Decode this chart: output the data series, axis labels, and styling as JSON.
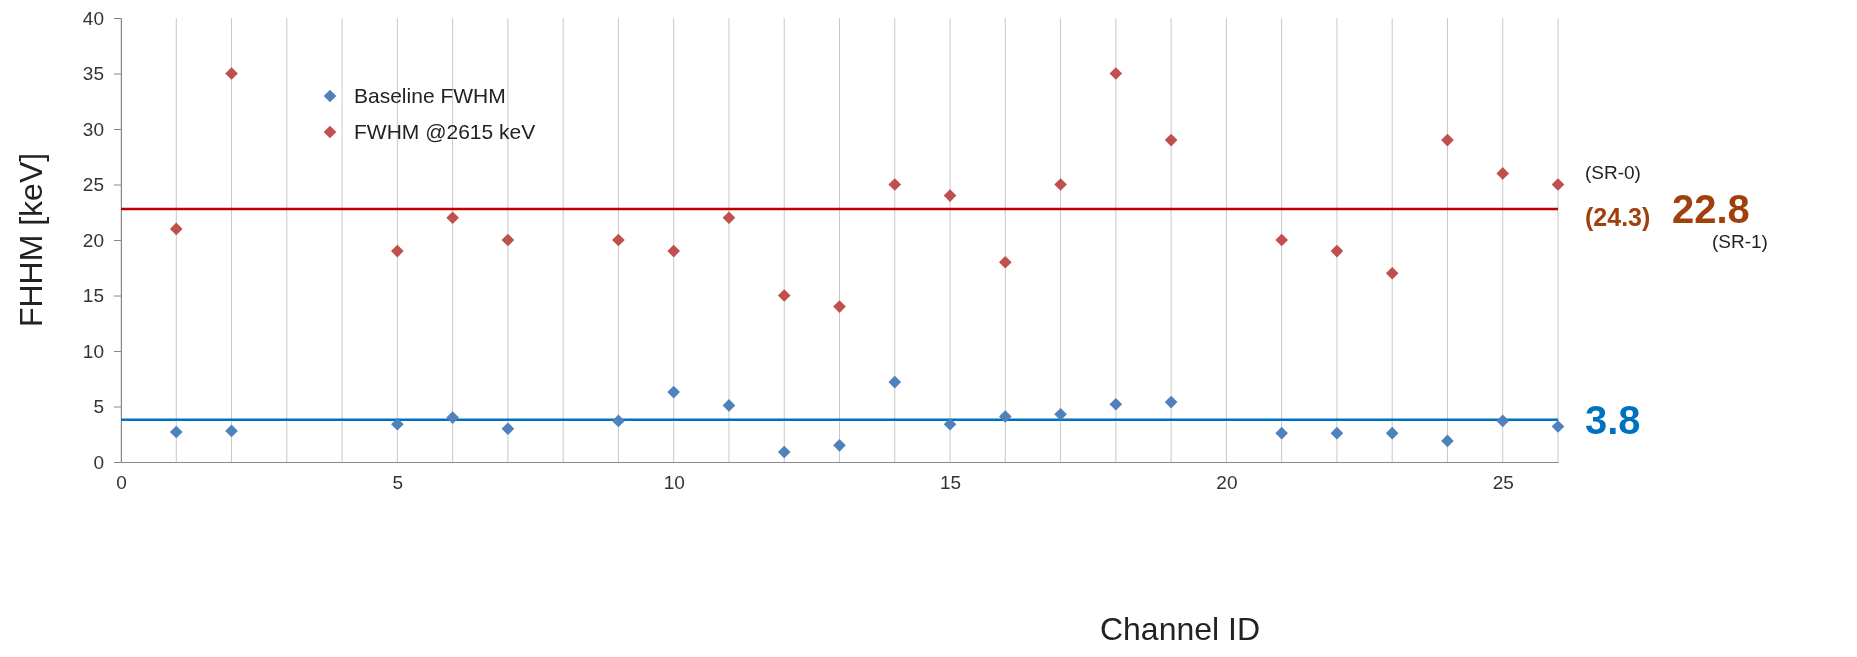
{
  "chart_data": {
    "type": "scatter",
    "xlabel": "Channel ID",
    "ylabel": "FHHM  [keV]",
    "marker": "diamond",
    "legend": "top left",
    "grid": "x",
    "xlim": [
      0,
      26
    ],
    "ylim": [
      0,
      40
    ],
    "xticks": [
      0,
      {
        "value": 1,
        "label": null
      },
      {
        "value": 2,
        "label": null
      },
      {
        "value": 3,
        "label": null
      },
      {
        "value": 4,
        "label": null
      },
      5,
      {
        "value": 6,
        "label": null
      },
      {
        "value": 7,
        "label": null
      },
      {
        "value": 8,
        "label": null
      },
      {
        "value": 9,
        "label": null
      },
      10,
      {
        "value": 11,
        "label": null
      },
      {
        "value": 12,
        "label": null
      },
      {
        "value": 13,
        "label": null
      },
      {
        "value": 14,
        "label": null
      },
      15,
      {
        "value": 16,
        "label": null
      },
      {
        "value": 17,
        "label": null
      },
      {
        "value": 18,
        "label": null
      },
      {
        "value": 19,
        "label": null
      },
      20,
      {
        "value": 21,
        "label": null
      },
      {
        "value": 22,
        "label": null
      },
      {
        "value": 23,
        "label": null
      },
      {
        "value": 24,
        "label": null
      },
      25,
      {
        "value": 26,
        "label": null
      }
    ],
    "yticks": [
      0,
      5,
      10,
      15,
      20,
      25,
      30,
      35,
      40
    ],
    "x": [
      1,
      2,
      5,
      6,
      7,
      9,
      10,
      11,
      12,
      13,
      14,
      15,
      16,
      17,
      18,
      19,
      21,
      22,
      23,
      24,
      25,
      26
    ],
    "series": [
      {
        "name": "Baseline FWHM",
        "color": "#4f81bd",
        "values": [
          2.7,
          2.8,
          3.4,
          4.0,
          3.0,
          3.7,
          6.3,
          5.1,
          0.9,
          1.5,
          7.2,
          3.4,
          4.1,
          4.3,
          5.2,
          5.4,
          2.6,
          2.6,
          2.6,
          1.9,
          3.7,
          3.2
        ]
      },
      {
        "name": "FWHM @2615 keV",
        "color": "#c0504d",
        "values": [
          21,
          35,
          19,
          22,
          20,
          20,
          19,
          22,
          15,
          14,
          25,
          24,
          18,
          25,
          35,
          29,
          20,
          19,
          17,
          29,
          26,
          25
        ]
      }
    ],
    "ref_lines": [
      {
        "axis": "y",
        "value": 22.8,
        "label": "22.8",
        "color": "#c00000"
      },
      {
        "axis": "y",
        "value": 3.8,
        "label": "3.8",
        "color": "#0070c0"
      }
    ],
    "annotations": [
      "(SR-0)",
      "(24.3)",
      "(SR-1)"
    ]
  }
}
